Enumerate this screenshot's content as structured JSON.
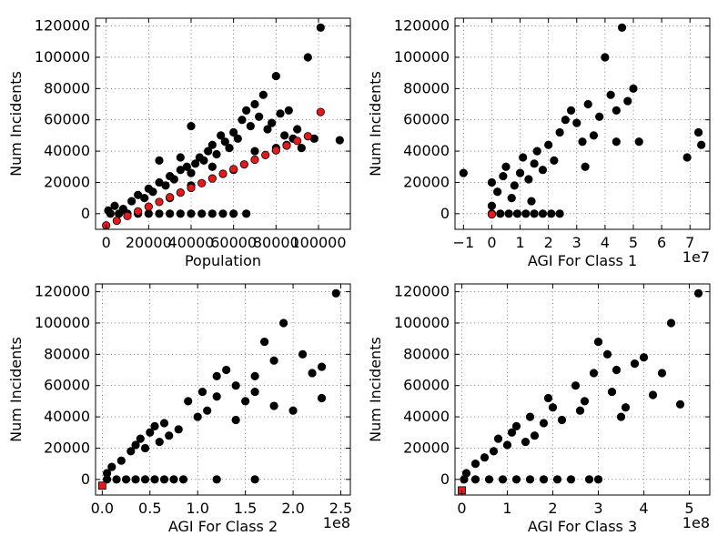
{
  "colors": {
    "black_points": "#000000",
    "red_points": "#e31a1c"
  },
  "chart_data": [
    {
      "type": "scatter",
      "xlabel": "Population",
      "ylabel": "Num Incidents",
      "x_offset_label": "",
      "xlim": [
        -5000,
        115000
      ],
      "ylim": [
        -10000,
        125000
      ],
      "xticks": [
        0,
        20000,
        40000,
        60000,
        80000,
        100000
      ],
      "xtick_labels": [
        "0",
        "20000",
        "40000",
        "60000",
        "80000",
        "100000"
      ],
      "yticks": [
        0,
        20000,
        40000,
        60000,
        80000,
        100000,
        120000
      ],
      "ytick_labels": [
        "0",
        "20000",
        "40000",
        "60000",
        "80000",
        "100000",
        "120000"
      ],
      "grid": true,
      "series": [
        {
          "color": "black",
          "marker": "circle",
          "points": [
            [
              2000,
              0
            ],
            [
              6000,
              0
            ],
            [
              10000,
              0
            ],
            [
              15000,
              0
            ],
            [
              20000,
              0
            ],
            [
              25000,
              0
            ],
            [
              30000,
              0
            ],
            [
              35000,
              0
            ],
            [
              40000,
              0
            ],
            [
              45000,
              0
            ],
            [
              50000,
              0
            ],
            [
              55000,
              0
            ],
            [
              60000,
              0
            ],
            [
              66000,
              0
            ],
            [
              1000,
              2000
            ],
            [
              4000,
              5000
            ],
            [
              8000,
              3000
            ],
            [
              12000,
              8000
            ],
            [
              15000,
              12000
            ],
            [
              18000,
              10000
            ],
            [
              20000,
              16000
            ],
            [
              22000,
              14000
            ],
            [
              25000,
              20000
            ],
            [
              28000,
              18000
            ],
            [
              30000,
              24000
            ],
            [
              32000,
              22000
            ],
            [
              35000,
              28000
            ],
            [
              38000,
              30000
            ],
            [
              40000,
              26000
            ],
            [
              42000,
              32000
            ],
            [
              44000,
              36000
            ],
            [
              46000,
              34000
            ],
            [
              48000,
              40000
            ],
            [
              50000,
              44000
            ],
            [
              52000,
              38000
            ],
            [
              54000,
              50000
            ],
            [
              56000,
              46000
            ],
            [
              58000,
              42000
            ],
            [
              60000,
              52000
            ],
            [
              62000,
              48000
            ],
            [
              64000,
              60000
            ],
            [
              66000,
              66000
            ],
            [
              68000,
              56000
            ],
            [
              70000,
              70000
            ],
            [
              72000,
              62000
            ],
            [
              74000,
              76000
            ],
            [
              76000,
              54000
            ],
            [
              78000,
              58000
            ],
            [
              80000,
              88000
            ],
            [
              82000,
              64000
            ],
            [
              84000,
              50000
            ],
            [
              86000,
              66000
            ],
            [
              88000,
              48000
            ],
            [
              90000,
              54000
            ],
            [
              92000,
              42000
            ],
            [
              95000,
              100000
            ],
            [
              98000,
              48000
            ],
            [
              101000,
              119000
            ],
            [
              110000,
              47000
            ],
            [
              30000,
              10000
            ],
            [
              40000,
              18000
            ],
            [
              50000,
              30000
            ],
            [
              60000,
              28000
            ],
            [
              70000,
              40000
            ],
            [
              80000,
              42000
            ],
            [
              85000,
              44000
            ],
            [
              40000,
              56000
            ],
            [
              25000,
              34000
            ],
            [
              35000,
              36000
            ]
          ]
        },
        {
          "color": "red",
          "marker": "circle",
          "points": [
            [
              0,
              -7500
            ],
            [
              5000,
              -4500
            ],
            [
              10000,
              -1500
            ],
            [
              15000,
              1500
            ],
            [
              20000,
              4500
            ],
            [
              25000,
              7500
            ],
            [
              30000,
              10500
            ],
            [
              35000,
              13500
            ],
            [
              40000,
              16500
            ],
            [
              45000,
              19500
            ],
            [
              50000,
              22500
            ],
            [
              55000,
              25500
            ],
            [
              60000,
              28500
            ],
            [
              65000,
              31500
            ],
            [
              70000,
              34500
            ],
            [
              75000,
              37500
            ],
            [
              80000,
              40500
            ],
            [
              85000,
              43500
            ],
            [
              90000,
              46500
            ],
            [
              95000,
              49500
            ],
            [
              101000,
              65000
            ]
          ]
        }
      ]
    },
    {
      "type": "scatter",
      "xlabel": "AGI For Class 1",
      "ylabel": "Num Incidents",
      "x_offset_label": "1e7",
      "xlim": [
        -1.3,
        7.7
      ],
      "ylim": [
        -10000,
        125000
      ],
      "xticks": [
        -1,
        0,
        1,
        2,
        3,
        4,
        5,
        6,
        7
      ],
      "xtick_labels": [
        "−1",
        "0",
        "1",
        "2",
        "3",
        "4",
        "5",
        "6",
        "7"
      ],
      "yticks": [
        0,
        20000,
        40000,
        60000,
        80000,
        100000,
        120000
      ],
      "ytick_labels": [
        "0",
        "20000",
        "40000",
        "60000",
        "80000",
        "100000",
        "120000"
      ],
      "grid": true,
      "series": [
        {
          "color": "black",
          "marker": "circle",
          "points": [
            [
              -1,
              26000
            ],
            [
              0,
              0
            ],
            [
              0.3,
              0
            ],
            [
              0.6,
              0
            ],
            [
              0.9,
              0
            ],
            [
              1.2,
              0
            ],
            [
              1.5,
              0
            ],
            [
              1.8,
              0
            ],
            [
              2.1,
              0
            ],
            [
              2.4,
              0
            ],
            [
              0,
              5000
            ],
            [
              0,
              20000
            ],
            [
              0.2,
              14000
            ],
            [
              0.4,
              24000
            ],
            [
              0.5,
              30000
            ],
            [
              0.8,
              18000
            ],
            [
              1,
              26000
            ],
            [
              1.1,
              36000
            ],
            [
              1.3,
              22000
            ],
            [
              1.5,
              32000
            ],
            [
              1.6,
              40000
            ],
            [
              1.8,
              28000
            ],
            [
              2,
              44000
            ],
            [
              2.2,
              34000
            ],
            [
              2.4,
              52000
            ],
            [
              2.6,
              60000
            ],
            [
              2.8,
              66000
            ],
            [
              3,
              58000
            ],
            [
              3.2,
              46000
            ],
            [
              3.4,
              70000
            ],
            [
              3.6,
              50000
            ],
            [
              3.8,
              62000
            ],
            [
              4,
              100000
            ],
            [
              4.2,
              76000
            ],
            [
              4.4,
              66000
            ],
            [
              4.6,
              119000
            ],
            [
              4.8,
              72000
            ],
            [
              5,
              80000
            ],
            [
              5.2,
              46000
            ],
            [
              4.4,
              46000
            ],
            [
              3.3,
              30000
            ],
            [
              6.9,
              36000
            ],
            [
              7.3,
              52000
            ],
            [
              7.4,
              44000
            ],
            [
              1.4,
              8000
            ],
            [
              0.7,
              10000
            ]
          ]
        },
        {
          "color": "red",
          "marker": "circle",
          "points": [
            [
              0,
              -500
            ]
          ]
        }
      ]
    },
    {
      "type": "scatter",
      "xlabel": "AGI For Class 2",
      "ylabel": "Num Incidents",
      "x_offset_label": "1e8",
      "xlim": [
        -0.07,
        2.6
      ],
      "ylim": [
        -10000,
        125000
      ],
      "xticks": [
        0,
        0.5,
        1,
        1.5,
        2,
        2.5
      ],
      "xtick_labels": [
        "0.0",
        "0.5",
        "1.0",
        "1.5",
        "2.0",
        "2.5"
      ],
      "yticks": [
        0,
        20000,
        40000,
        60000,
        80000,
        100000,
        120000
      ],
      "ytick_labels": [
        "0",
        "20000",
        "40000",
        "60000",
        "80000",
        "100000",
        "120000"
      ],
      "grid": true,
      "series": [
        {
          "color": "black",
          "marker": "circle",
          "points": [
            [
              0.05,
              0
            ],
            [
              0.15,
              0
            ],
            [
              0.25,
              0
            ],
            [
              0.35,
              0
            ],
            [
              0.45,
              0
            ],
            [
              0.55,
              0
            ],
            [
              0.65,
              0
            ],
            [
              0.75,
              0
            ],
            [
              0.85,
              0
            ],
            [
              1.2,
              0
            ],
            [
              1.6,
              0
            ],
            [
              0.05,
              4000
            ],
            [
              0.1,
              8000
            ],
            [
              0.2,
              12000
            ],
            [
              0.3,
              18000
            ],
            [
              0.35,
              22000
            ],
            [
              0.4,
              26000
            ],
            [
              0.45,
              20000
            ],
            [
              0.5,
              30000
            ],
            [
              0.55,
              34000
            ],
            [
              0.6,
              24000
            ],
            [
              0.65,
              36000
            ],
            [
              0.7,
              28000
            ],
            [
              0.8,
              32000
            ],
            [
              0.9,
              50000
            ],
            [
              1,
              40000
            ],
            [
              1.05,
              56000
            ],
            [
              1.1,
              44000
            ],
            [
              1.2,
              66000
            ],
            [
              1.3,
              70000
            ],
            [
              1.4,
              60000
            ],
            [
              1.5,
              50000
            ],
            [
              1.6,
              66000
            ],
            [
              1.7,
              88000
            ],
            [
              1.8,
              76000
            ],
            [
              1.9,
              100000
            ],
            [
              2,
              44000
            ],
            [
              2.1,
              80000
            ],
            [
              2.2,
              68000
            ],
            [
              2.3,
              72000
            ],
            [
              2.3,
              52000
            ],
            [
              2.45,
              119000
            ],
            [
              1.4,
              38000
            ],
            [
              1.6,
              56000
            ],
            [
              1.8,
              47000
            ],
            [
              1.2,
              53000
            ]
          ]
        },
        {
          "color": "red",
          "marker": "square",
          "points": [
            [
              0,
              -4000
            ]
          ]
        }
      ]
    },
    {
      "type": "scatter",
      "xlabel": "AGI For Class 3",
      "ylabel": "Num Incidents",
      "x_offset_label": "1e8",
      "xlim": [
        -0.15,
        5.45
      ],
      "ylim": [
        -10000,
        125000
      ],
      "xticks": [
        0,
        1,
        2,
        3,
        4,
        5
      ],
      "xtick_labels": [
        "0",
        "1",
        "2",
        "3",
        "4",
        "5"
      ],
      "yticks": [
        0,
        20000,
        40000,
        60000,
        80000,
        100000,
        120000
      ],
      "ytick_labels": [
        "0",
        "20000",
        "40000",
        "60000",
        "80000",
        "100000",
        "120000"
      ],
      "grid": true,
      "series": [
        {
          "color": "black",
          "marker": "circle",
          "points": [
            [
              0.05,
              0
            ],
            [
              0.3,
              0
            ],
            [
              0.6,
              0
            ],
            [
              0.9,
              0
            ],
            [
              1.2,
              0
            ],
            [
              1.5,
              0
            ],
            [
              1.8,
              0
            ],
            [
              2.1,
              0
            ],
            [
              2.4,
              0
            ],
            [
              2.8,
              0
            ],
            [
              3.0,
              0
            ],
            [
              0.1,
              4000
            ],
            [
              0.3,
              10000
            ],
            [
              0.5,
              14000
            ],
            [
              0.7,
              18000
            ],
            [
              0.8,
              26000
            ],
            [
              1,
              22000
            ],
            [
              1.1,
              30000
            ],
            [
              1.2,
              34000
            ],
            [
              1.4,
              24000
            ],
            [
              1.5,
              40000
            ],
            [
              1.6,
              28000
            ],
            [
              1.8,
              36000
            ],
            [
              2,
              46000
            ],
            [
              2.2,
              38000
            ],
            [
              2.5,
              60000
            ],
            [
              2.7,
              50000
            ],
            [
              2.9,
              68000
            ],
            [
              3,
              88000
            ],
            [
              3.2,
              80000
            ],
            [
              3.3,
              56000
            ],
            [
              3.4,
              70000
            ],
            [
              3.6,
              46000
            ],
            [
              3.8,
              74000
            ],
            [
              4,
              78000
            ],
            [
              4.2,
              54000
            ],
            [
              4.4,
              68000
            ],
            [
              4.6,
              100000
            ],
            [
              4.8,
              48000
            ],
            [
              5.2,
              119000
            ],
            [
              2.6,
              44000
            ],
            [
              1.9,
              52000
            ],
            [
              3.5,
              40000
            ]
          ]
        },
        {
          "color": "red",
          "marker": "square",
          "points": [
            [
              0,
              -7000
            ]
          ]
        }
      ]
    }
  ]
}
